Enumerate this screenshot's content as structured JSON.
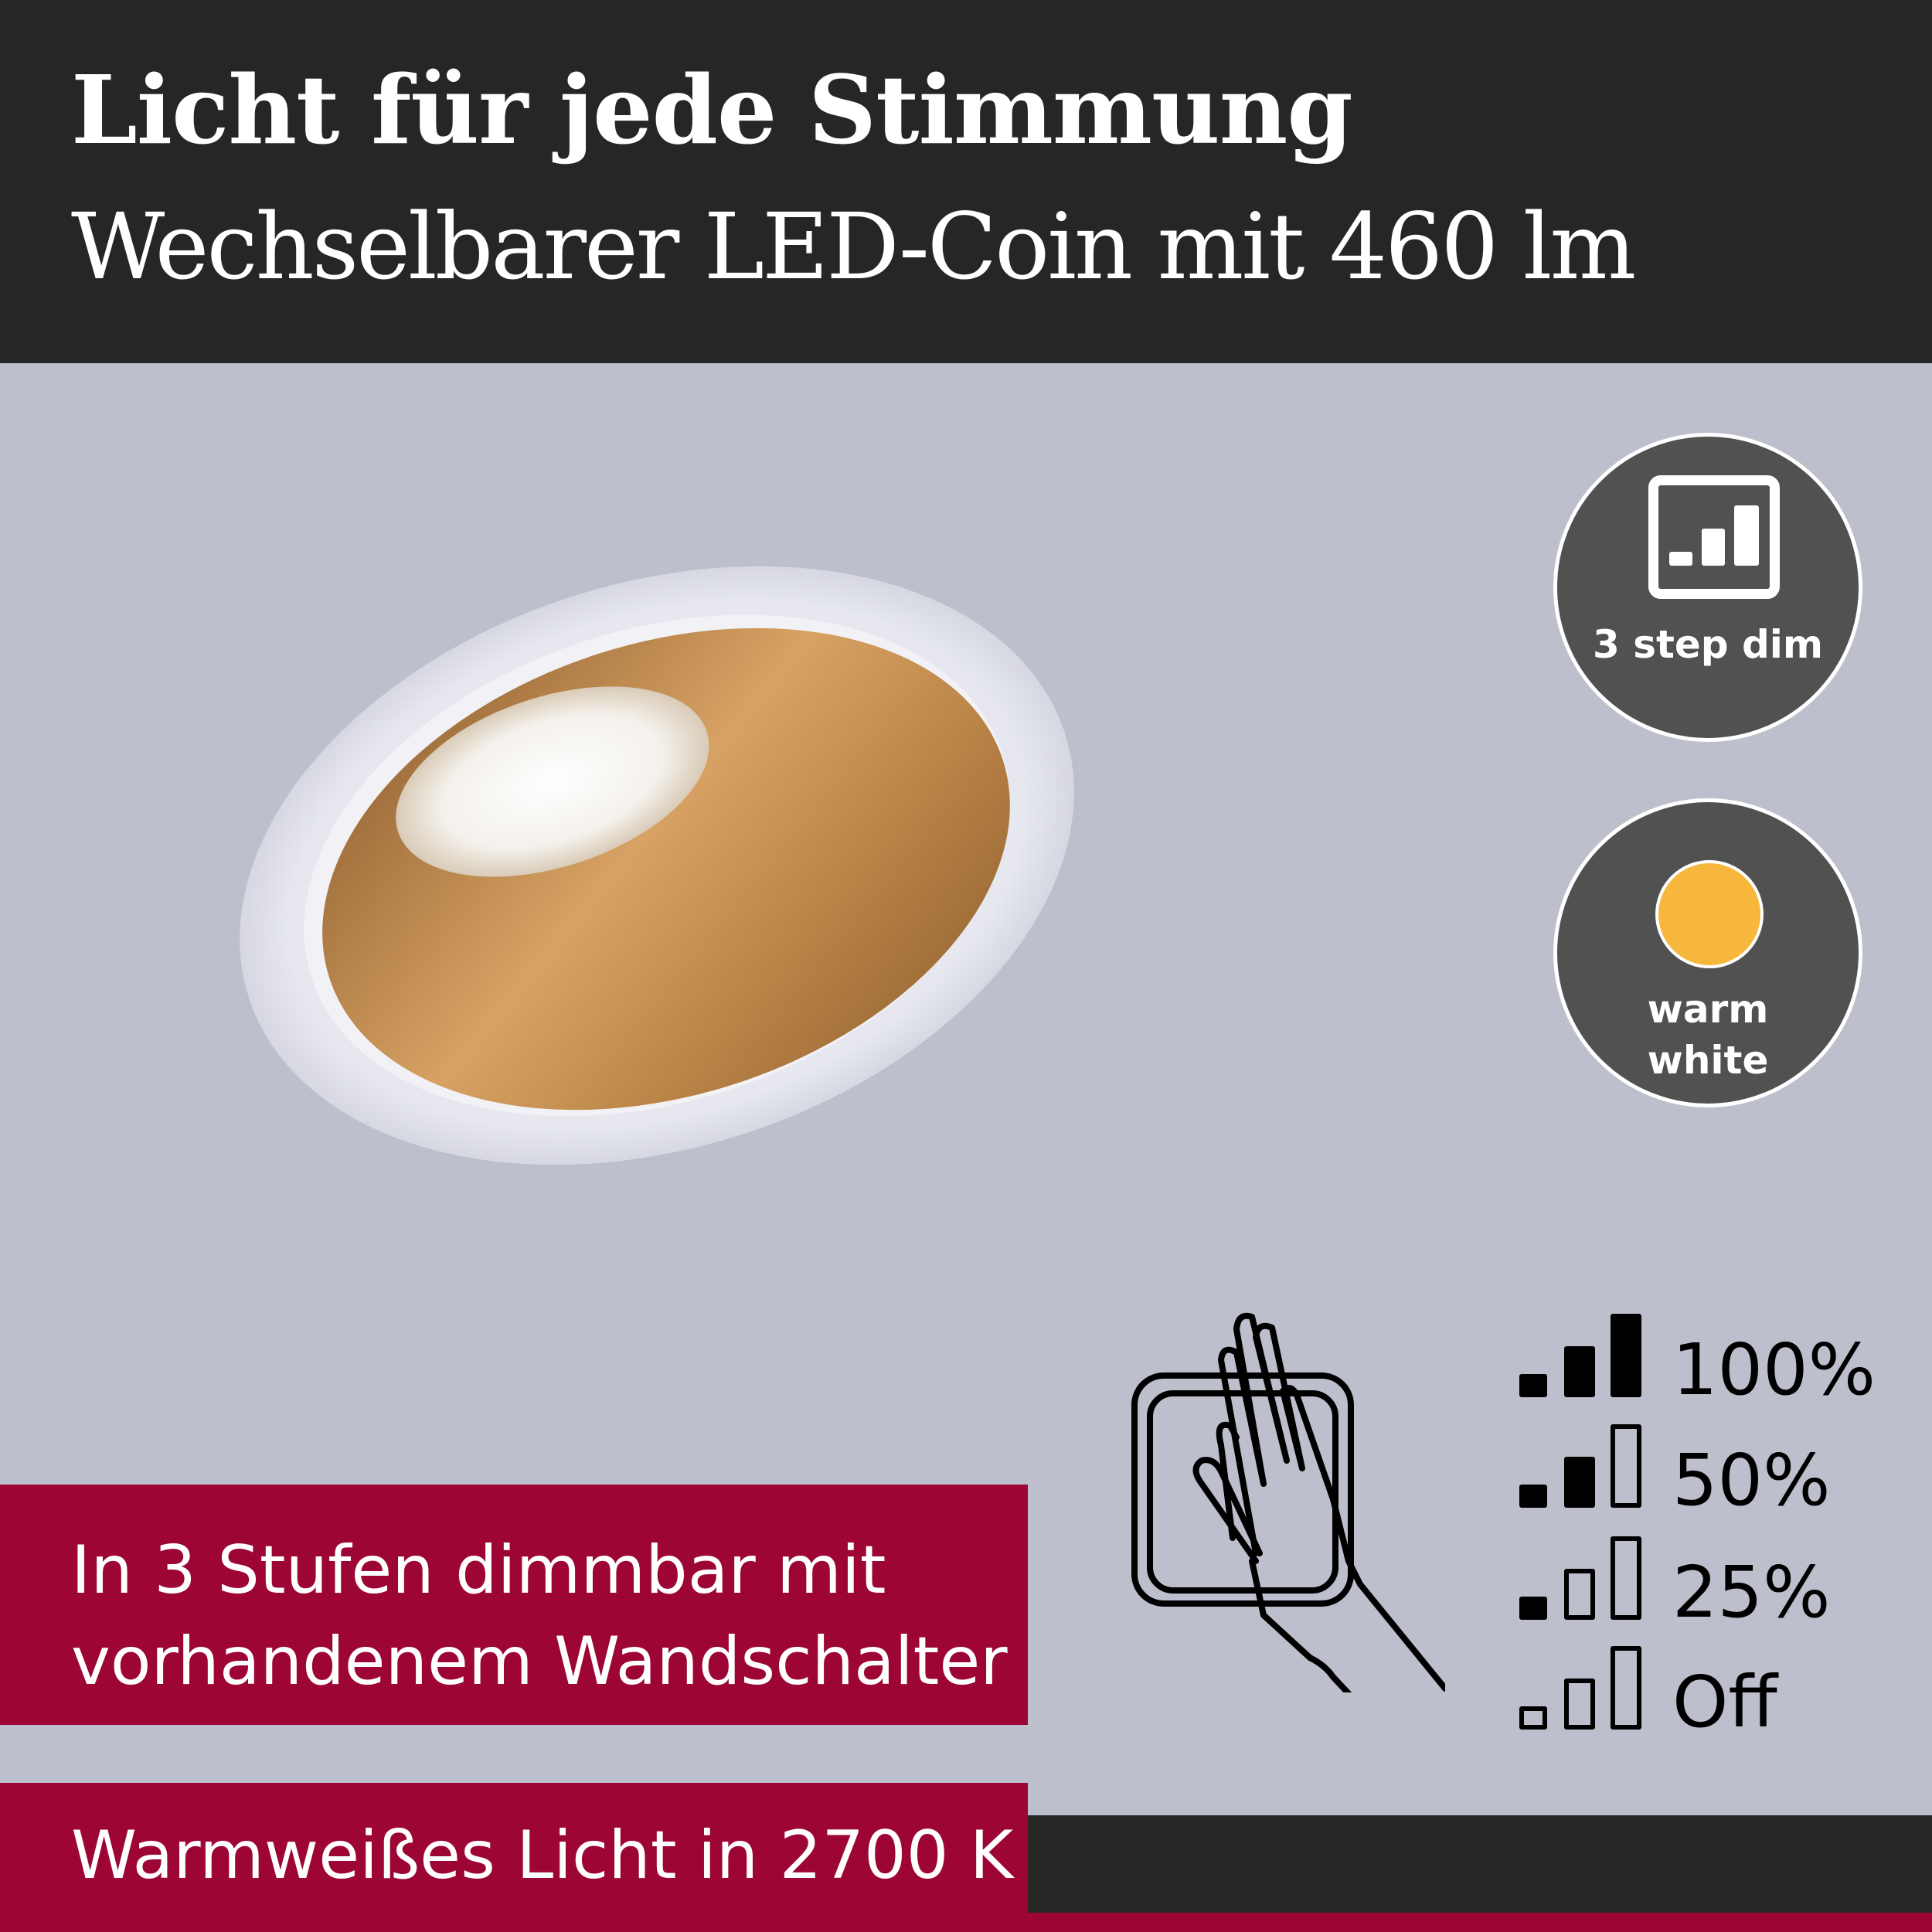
{
  "header": {
    "title": "Licht für jede Stimmung",
    "subtitle": "Wechselbarer LED-Coin mit 460 lm"
  },
  "badges": [
    {
      "icon": "dim-bars-icon",
      "label": "3 step dim"
    },
    {
      "icon": "warm-light-dot-icon",
      "label_line1": "warm",
      "label_line2": "white",
      "color": "#f6b73c"
    }
  ],
  "features": [
    {
      "line1": "In 3 Stufen dimmbar mit",
      "line2": "vorhandenem Wandschalter"
    },
    {
      "line1": "Warmweißes Licht in 2700 K"
    }
  ],
  "dim_levels": [
    {
      "label": "100%",
      "filled_bars": 3
    },
    {
      "label": "50%",
      "filled_bars": 2
    },
    {
      "label": "25%",
      "filled_bars": 1
    },
    {
      "label": "Off",
      "filled_bars": 0
    }
  ],
  "colors": {
    "header": "#262624",
    "accent": "#9c0534",
    "background": "#bdbfcd",
    "gold": "#c8924a"
  }
}
